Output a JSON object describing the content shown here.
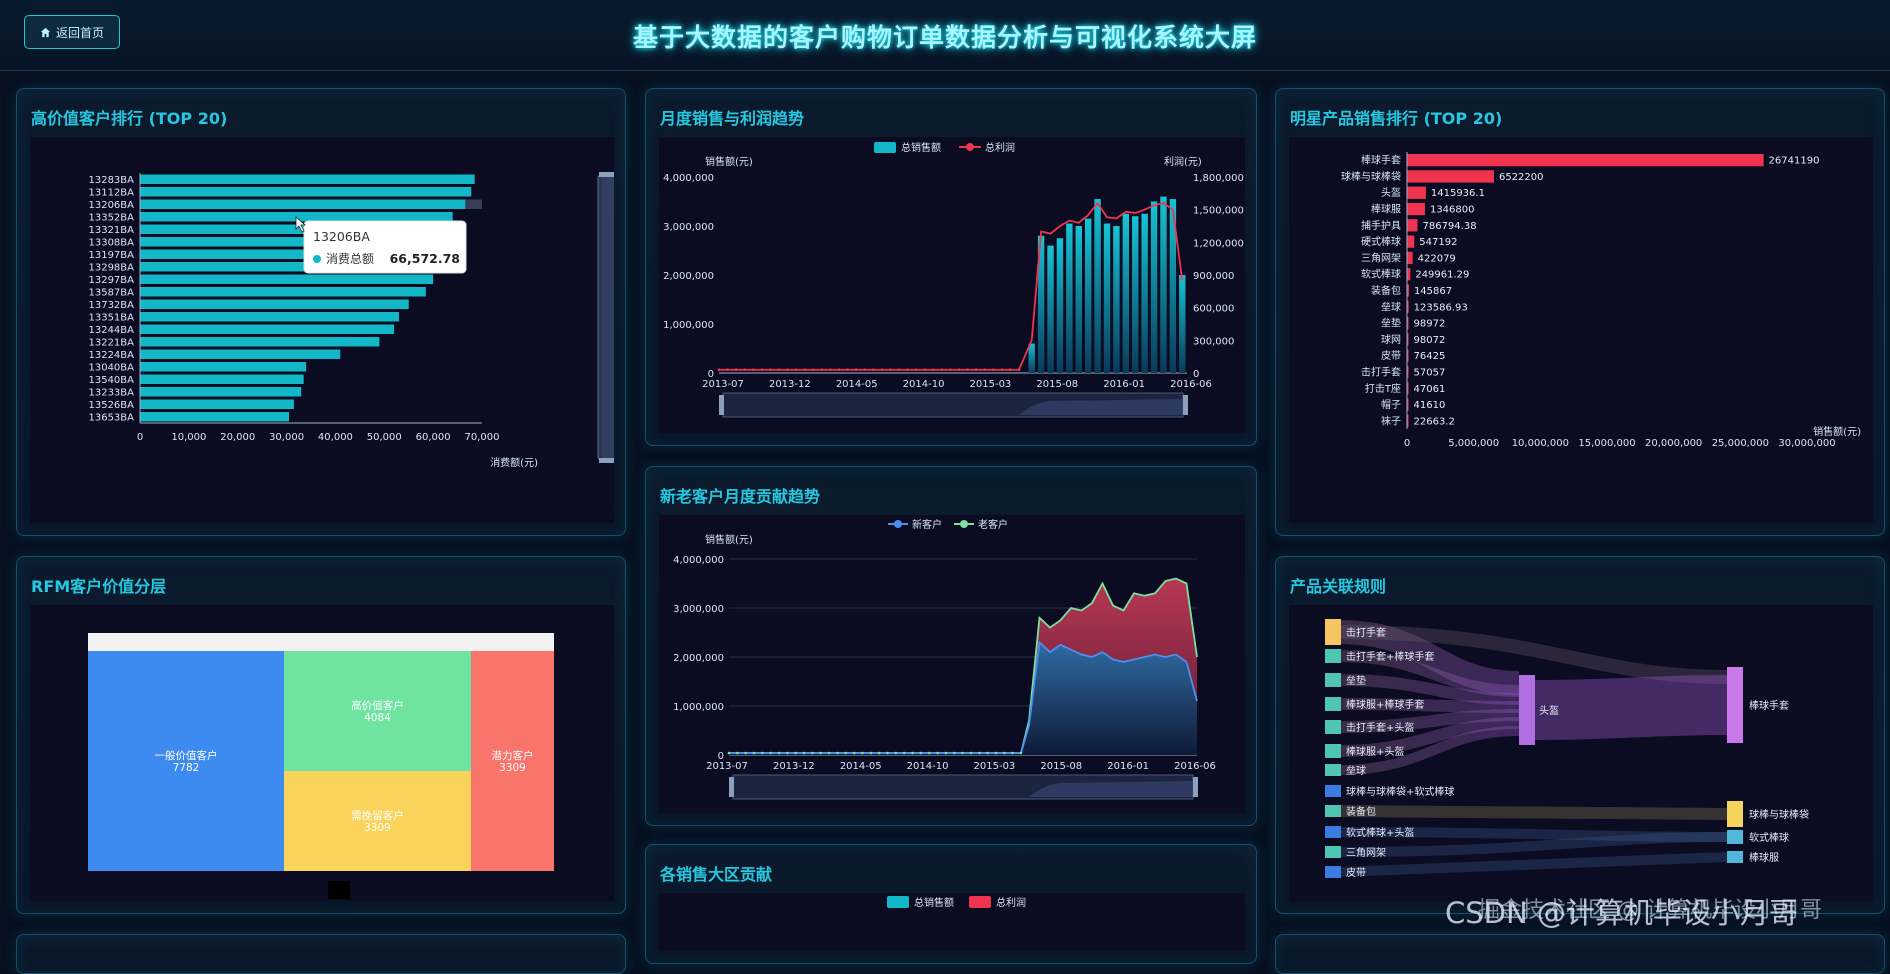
{
  "header": {
    "home_label": "返回首页",
    "title": "基于大数据的客户购物订单数据分析与可视化系统大屏"
  },
  "colors": {
    "accent": "#25c8e0",
    "bar_cyan": "#12b8c8",
    "bar_red": "#f0344f",
    "line_green": "#7de0a0",
    "line_blue": "#4d8ff0"
  },
  "panels": {
    "customer_rank": {
      "title": "高价值客户排行 (TOP 20)"
    },
    "monthly": {
      "title": "月度销售与利润趋势"
    },
    "product_rank": {
      "title": "明星产品销售排行 (TOP 20)"
    },
    "rfm": {
      "title": "RFM客户价值分层"
    },
    "newold": {
      "title": "新老客户月度贡献趋势"
    },
    "assoc": {
      "title": "产品关联规则"
    },
    "region": {
      "title": "各销售大区贡献"
    }
  },
  "tooltip": {
    "name": "13206BA",
    "series": "消费总额",
    "value": "66,572.78"
  },
  "watermark": "CSDN @计算机毕设小月哥",
  "watermark2": "掘金技术社区 @ 计算机毕设小月哥",
  "chart_data": [
    {
      "id": "customer_rank",
      "type": "bar",
      "orientation": "horizontal",
      "categories": [
        "13283BA",
        "13112BA",
        "13206BA",
        "13352BA",
        "13321BA",
        "13308BA",
        "13197BA",
        "13298BA",
        "13297BA",
        "13587BA",
        "13732BA",
        "13351BA",
        "13244BA",
        "13221BA",
        "13224BA",
        "13040BA",
        "13540BA",
        "13233BA",
        "13526BA",
        "13653BA"
      ],
      "values": [
        68500,
        67800,
        66572.78,
        64000,
        63300,
        62500,
        62000,
        60500,
        60000,
        58500,
        55000,
        53000,
        52000,
        49000,
        41000,
        34000,
        33500,
        33000,
        31500,
        30500
      ],
      "xlabel": "消费额(元)",
      "xlim": [
        0,
        70000
      ],
      "xticks": [
        "0",
        "10,000",
        "20,000",
        "30,000",
        "40,000",
        "50,000",
        "60,000",
        "70,000"
      ]
    },
    {
      "id": "monthly",
      "type": "bar+line",
      "legend": [
        "总销售额",
        "总利润"
      ],
      "ylabel_left": "销售额(元)",
      "ylabel_right": "利润(元)",
      "yticks_left": [
        "0",
        "1,000,000",
        "2,000,000",
        "3,000,000",
        "4,000,000"
      ],
      "yticks_right": [
        "0",
        "300,000",
        "600,000",
        "900,000",
        "1,200,000",
        "1,500,000",
        "1,800,000"
      ],
      "xticks": [
        "2013-07",
        "2013-12",
        "2014-05",
        "2014-10",
        "2015-03",
        "2015-08",
        "2016-01",
        "2016-06"
      ],
      "sales": [
        600000,
        2800000,
        2600000,
        2750000,
        3050000,
        3000000,
        3150000,
        3550000,
        3050000,
        3000000,
        3250000,
        3200000,
        3250000,
        3500000,
        3600000,
        3550000,
        2000000
      ],
      "profit_before": 30000,
      "profit": [
        300000,
        1300000,
        1280000,
        1350000,
        1400000,
        1380000,
        1450000,
        1560000,
        1430000,
        1420000,
        1480000,
        1470000,
        1500000,
        1540000,
        1560000,
        1500000,
        850000
      ]
    },
    {
      "id": "product_rank",
      "type": "bar",
      "orientation": "horizontal",
      "categories": [
        "棒球手套",
        "球棒与球棒袋",
        "头盔",
        "棒球服",
        "捕手护具",
        "硬式棒球",
        "三角网架",
        "软式棒球",
        "装备包",
        "垒球",
        "垒垫",
        "球网",
        "皮带",
        "击打手套",
        "打击T座",
        "帽子",
        "袜子"
      ],
      "values": [
        26741190,
        6522200,
        1415936.1,
        1346800,
        786794.38,
        547192,
        422079,
        249961.29,
        145867,
        123586.93,
        98972,
        98072,
        76425,
        57057,
        47061,
        41610,
        22663.2
      ],
      "labels": [
        "26741190",
        "6522200",
        "1415936.1",
        "1346800",
        "786794.38",
        "547192",
        "422079",
        "249961.29",
        "145867",
        "123586.93",
        "98972",
        "98072",
        "76425",
        "57057",
        "47061",
        "41610",
        "22663.2"
      ],
      "xlabel": "销售额(元)",
      "xlim": [
        0,
        30000000
      ],
      "xticks": [
        "0",
        "5,000,000",
        "10,000,000",
        "15,000,000",
        "20,000,000",
        "25,000,000",
        "30,000,000"
      ]
    },
    {
      "id": "rfm",
      "type": "treemap",
      "items": [
        {
          "name": "一般价值客户",
          "value": "7782"
        },
        {
          "name": "高价值客户",
          "value": "4084"
        },
        {
          "name": "需挽留客户",
          "value": "3309"
        },
        {
          "name": "潜力客户",
          "value": "3309"
        }
      ]
    },
    {
      "id": "newold",
      "type": "area",
      "legend": [
        "新客户",
        "老客户"
      ],
      "ylabel": "销售额(元)",
      "yticks": [
        "0",
        "1,000,000",
        "2,000,000",
        "3,000,000",
        "4,000,000"
      ],
      "xticks": [
        "2013-07",
        "2013-12",
        "2014-05",
        "2014-10",
        "2015-03",
        "2015-08",
        "2016-01",
        "2016-06"
      ],
      "new": [
        600000,
        2300000,
        2100000,
        2250000,
        2150000,
        2050000,
        2000000,
        2100000,
        1950000,
        1900000,
        1950000,
        2000000,
        2050000,
        2000000,
        2050000,
        1900000,
        1100000
      ],
      "old": [
        700000,
        2800000,
        2600000,
        2750000,
        3000000,
        2950000,
        3100000,
        3500000,
        3050000,
        2950000,
        3300000,
        3250000,
        3300000,
        3550000,
        3600000,
        3500000,
        2000000
      ]
    },
    {
      "id": "assoc",
      "type": "sankey",
      "left": [
        "击打手套",
        "击打手套+棒球手套",
        "垒垫",
        "棒球服+棒球手套",
        "击打手套+头盔",
        "棒球服+头盔",
        "垒球",
        "球棒与球棒袋+软式棒球",
        "装备包",
        "软式棒球+头盔",
        "三角网架",
        "皮带"
      ],
      "middle": [
        "头盔"
      ],
      "right": [
        "棒球手套",
        "球棒与球棒袋",
        "软式棒球",
        "棒球服"
      ]
    },
    {
      "id": "region",
      "type": "bar",
      "legend": [
        "总销售额",
        "总利润"
      ]
    }
  ]
}
